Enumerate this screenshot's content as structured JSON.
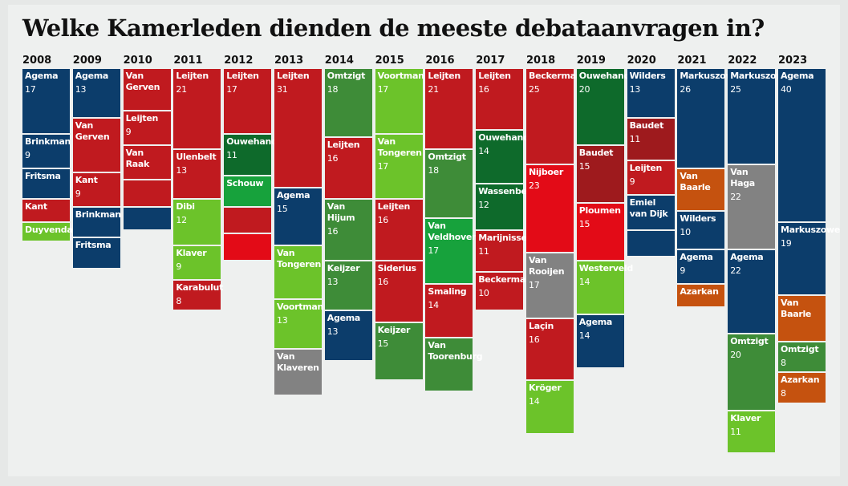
{
  "chart_data": {
    "type": "block",
    "title": "Welke Kamerleden dienden de meeste debataanvragen in?",
    "colors": {
      "blue": "#0c3d6b",
      "red": "#c01a1f",
      "darkred": "#9e1a1d",
      "brightred": "#e30b17",
      "green": "#3e8c38",
      "darkgreen": "#0e6a2b",
      "midgreen": "#17a23c",
      "lightgreen": "#6cc32a",
      "grey": "#828282",
      "orange": "#c5520f"
    },
    "columns": [
      {
        "year": "2008",
        "blocks": [
          {
            "name": "Agema",
            "value": 17,
            "color": "blue"
          },
          {
            "name": "Brinkman",
            "value": 9,
            "color": "blue"
          },
          {
            "name": "Fritsma",
            "value": 8,
            "color": "blue",
            "show_value": false
          },
          {
            "name": "Kant",
            "value": 6,
            "color": "red",
            "show_value": false
          },
          {
            "name": "Duyvendak",
            "value": 5,
            "color": "lightgreen",
            "show_value": false
          }
        ]
      },
      {
        "year": "2009",
        "blocks": [
          {
            "name": "Agema",
            "value": 13,
            "color": "blue"
          },
          {
            "name": "Van Gerven",
            "value": 14,
            "color": "red",
            "show_value": false
          },
          {
            "name": "Kant",
            "value": 9,
            "color": "red"
          },
          {
            "name": "Brinkman",
            "value": 8,
            "color": "blue",
            "show_value": false
          },
          {
            "name": "Fritsma",
            "value": 8,
            "color": "blue",
            "show_value": false
          }
        ]
      },
      {
        "year": "2010",
        "blocks": [
          {
            "name": "Van Gerven",
            "value": 11,
            "color": "red",
            "show_value": false
          },
          {
            "name": "Leijten",
            "value": 9,
            "color": "red"
          },
          {
            "name": "Van Raak",
            "value": 9,
            "color": "red",
            "show_value": false
          },
          {
            "name": null,
            "value": 7,
            "color": "red",
            "show_value": false
          },
          {
            "name": null,
            "value": 6,
            "color": "blue",
            "show_value": false
          }
        ]
      },
      {
        "year": "2011",
        "blocks": [
          {
            "name": "Leijten",
            "value": 21,
            "color": "red"
          },
          {
            "name": "Ulenbelt",
            "value": 13,
            "color": "red"
          },
          {
            "name": "Dibi",
            "value": 12,
            "color": "lightgreen"
          },
          {
            "name": "Klaver",
            "value": 9,
            "color": "lightgreen"
          },
          {
            "name": "Karabulut",
            "value": 8,
            "color": "red"
          }
        ]
      },
      {
        "year": "2012",
        "blocks": [
          {
            "name": "Leijten",
            "value": 17,
            "color": "red"
          },
          {
            "name": "Ouwehand",
            "value": 11,
            "color": "darkgreen"
          },
          {
            "name": "Schouw",
            "value": 8,
            "color": "midgreen",
            "show_value": false
          },
          {
            "name": null,
            "value": 7,
            "color": "red",
            "show_value": false
          },
          {
            "name": null,
            "value": 7,
            "color": "brightred",
            "show_value": false
          }
        ]
      },
      {
        "year": "2013",
        "blocks": [
          {
            "name": "Leijten",
            "value": 31,
            "color": "red"
          },
          {
            "name": "Agema",
            "value": 15,
            "color": "blue"
          },
          {
            "name": "Van Tongeren",
            "value": 14,
            "color": "lightgreen",
            "show_value": false
          },
          {
            "name": "Voortman",
            "value": 13,
            "color": "lightgreen"
          },
          {
            "name": "Van Klaveren",
            "value": 12,
            "color": "grey",
            "show_value": false
          }
        ]
      },
      {
        "year": "2014",
        "blocks": [
          {
            "name": "Omtzigt",
            "value": 18,
            "color": "green"
          },
          {
            "name": "Leijten",
            "value": 16,
            "color": "red"
          },
          {
            "name": "Van Hijum",
            "value": 16,
            "color": "green"
          },
          {
            "name": "Keijzer",
            "value": 13,
            "color": "green"
          },
          {
            "name": "Agema",
            "value": 13,
            "color": "blue"
          }
        ]
      },
      {
        "year": "2015",
        "blocks": [
          {
            "name": "Voortman",
            "value": 17,
            "color": "lightgreen"
          },
          {
            "name": "Van Tongeren",
            "value": 17,
            "color": "lightgreen"
          },
          {
            "name": "Leijten",
            "value": 16,
            "color": "red"
          },
          {
            "name": "Siderius",
            "value": 16,
            "color": "red"
          },
          {
            "name": "Keijzer",
            "value": 15,
            "color": "green"
          }
        ]
      },
      {
        "year": "2016",
        "blocks": [
          {
            "name": "Leijten",
            "value": 21,
            "color": "red"
          },
          {
            "name": "Omtzigt",
            "value": 18,
            "color": "green"
          },
          {
            "name": "Van Veldhoven",
            "value": 17,
            "color": "midgreen"
          },
          {
            "name": "Smaling",
            "value": 14,
            "color": "red"
          },
          {
            "name": "Van Toorenburg",
            "value": 14,
            "color": "green",
            "show_value": false
          }
        ]
      },
      {
        "year": "2017",
        "blocks": [
          {
            "name": "Leijten",
            "value": 16,
            "color": "red"
          },
          {
            "name": "Ouwehand",
            "value": 14,
            "color": "darkgreen"
          },
          {
            "name": "Wassenberg",
            "value": 12,
            "color": "darkgreen"
          },
          {
            "name": "Marijnissen",
            "value": 11,
            "color": "red"
          },
          {
            "name": "Beckerman",
            "value": 10,
            "color": "red"
          }
        ]
      },
      {
        "year": "2018",
        "blocks": [
          {
            "name": "Beckerman",
            "value": 25,
            "color": "red"
          },
          {
            "name": "Nijboer",
            "value": 23,
            "color": "brightred"
          },
          {
            "name": "Van Rooijen",
            "value": 17,
            "color": "grey"
          },
          {
            "name": "Laçin",
            "value": 16,
            "color": "red"
          },
          {
            "name": "Kröger",
            "value": 14,
            "color": "lightgreen"
          }
        ]
      },
      {
        "year": "2019",
        "blocks": [
          {
            "name": "Ouwehand",
            "value": 20,
            "color": "darkgreen"
          },
          {
            "name": "Baudet",
            "value": 15,
            "color": "darkred"
          },
          {
            "name": "Ploumen",
            "value": 15,
            "color": "brightred"
          },
          {
            "name": "Westerveld",
            "value": 14,
            "color": "lightgreen"
          },
          {
            "name": "Agema",
            "value": 14,
            "color": "blue"
          }
        ]
      },
      {
        "year": "2020",
        "blocks": [
          {
            "name": "Wilders",
            "value": 13,
            "color": "blue"
          },
          {
            "name": "Baudet",
            "value": 11,
            "color": "darkred"
          },
          {
            "name": "Leijten",
            "value": 9,
            "color": "red"
          },
          {
            "name": "Emiel van Dijk",
            "value": 9,
            "color": "blue",
            "show_value": false
          },
          {
            "name": null,
            "value": 7,
            "color": "blue",
            "show_value": false
          }
        ]
      },
      {
        "year": "2021",
        "blocks": [
          {
            "name": "Markuszower",
            "value": 26,
            "color": "blue"
          },
          {
            "name": "Van Baarle",
            "value": 11,
            "color": "orange",
            "show_value": false
          },
          {
            "name": "Wilders",
            "value": 10,
            "color": "blue"
          },
          {
            "name": "Agema",
            "value": 9,
            "color": "blue"
          },
          {
            "name": "Azarkan",
            "value": 6,
            "color": "orange",
            "show_value": false
          }
        ]
      },
      {
        "year": "2022",
        "blocks": [
          {
            "name": "Markuszower",
            "value": 25,
            "color": "blue"
          },
          {
            "name": "Van Haga",
            "value": 22,
            "color": "grey"
          },
          {
            "name": "Agema",
            "value": 22,
            "color": "blue"
          },
          {
            "name": "Omtzigt",
            "value": 20,
            "color": "green"
          },
          {
            "name": "Klaver",
            "value": 11,
            "color": "lightgreen"
          }
        ]
      },
      {
        "year": "2023",
        "blocks": [
          {
            "name": "Agema",
            "value": 40,
            "color": "blue"
          },
          {
            "name": "Markuszower",
            "value": 19,
            "color": "blue"
          },
          {
            "name": "Van Baarle",
            "value": 12,
            "color": "orange",
            "show_value": false
          },
          {
            "name": "Omtzigt",
            "value": 8,
            "color": "green"
          },
          {
            "name": "Azarkan",
            "value": 8,
            "color": "orange"
          }
        ]
      }
    ]
  }
}
